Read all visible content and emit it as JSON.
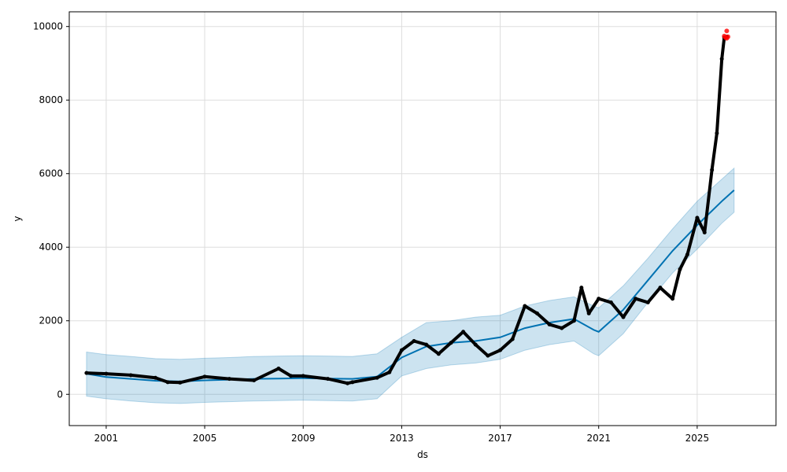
{
  "chart_data": {
    "type": "line",
    "title": "",
    "xlabel": "ds",
    "ylabel": "y",
    "xlim": [
      1999.5,
      2028.2
    ],
    "ylim": [
      -850,
      10400
    ],
    "grid": true,
    "x_ticks": [
      2001,
      2005,
      2009,
      2013,
      2017,
      2021,
      2025
    ],
    "x_tick_labels": [
      "2001",
      "2005",
      "2009",
      "2013",
      "2017",
      "2021",
      "2025"
    ],
    "y_ticks": [
      0,
      2000,
      4000,
      6000,
      8000,
      10000
    ],
    "y_tick_labels": [
      "0",
      "2000",
      "4000",
      "6000",
      "8000",
      "10000"
    ],
    "colors": {
      "forecast_line": "#0072b2",
      "uncertainty_band": "#0072b2",
      "observed_points": "#000000",
      "highlighted_points": "#ff0000",
      "grid": "#dddddd"
    },
    "forecast": {
      "x": [
        2000.2,
        2001,
        2002,
        2003,
        2004,
        2005,
        2006,
        2007,
        2008,
        2009,
        2010,
        2011,
        2012,
        2013,
        2014,
        2015,
        2016,
        2017,
        2018,
        2019,
        2020,
        2020.8,
        2021,
        2022,
        2023,
        2024,
        2025,
        2026,
        2026.5
      ],
      "yhat": [
        560,
        470,
        420,
        370,
        350,
        380,
        400,
        420,
        430,
        440,
        430,
        420,
        480,
        1000,
        1300,
        1400,
        1450,
        1550,
        1800,
        1950,
        2050,
        1750,
        1700,
        2300,
        3100,
        3900,
        4600,
        5250,
        5550
      ],
      "upper": [
        1150,
        1080,
        1030,
        970,
        950,
        980,
        1000,
        1030,
        1040,
        1050,
        1040,
        1030,
        1100,
        1550,
        1950,
        2000,
        2100,
        2150,
        2400,
        2550,
        2650,
        2400,
        2350,
        2950,
        3700,
        4500,
        5250,
        5850,
        6150
      ],
      "lower": [
        -50,
        -120,
        -180,
        -230,
        -250,
        -220,
        -200,
        -180,
        -170,
        -160,
        -170,
        -180,
        -120,
        500,
        700,
        800,
        850,
        950,
        1200,
        1350,
        1450,
        1100,
        1050,
        1650,
        2500,
        3300,
        3950,
        4650,
        4950
      ]
    },
    "observed": {
      "x": [
        2000.2,
        2001,
        2002,
        2003,
        2003.5,
        2004,
        2005,
        2006,
        2007,
        2008,
        2008.5,
        2009,
        2010,
        2010.8,
        2011,
        2012,
        2012.5,
        2013,
        2013.5,
        2014,
        2014.5,
        2015,
        2015.5,
        2016,
        2016.5,
        2017,
        2017.5,
        2018,
        2018.5,
        2019,
        2019.5,
        2020,
        2020.3,
        2020.6,
        2021,
        2021.5,
        2022,
        2022.5,
        2023,
        2023.5,
        2024,
        2024.3,
        2024.6,
        2025,
        2025.3,
        2025.6,
        2025.8,
        2026,
        2026.1,
        2026.2
      ],
      "y": [
        580,
        560,
        520,
        450,
        330,
        320,
        480,
        420,
        380,
        700,
        500,
        500,
        420,
        300,
        330,
        450,
        600,
        1200,
        1450,
        1350,
        1100,
        1400,
        1700,
        1350,
        1050,
        1200,
        1500,
        2400,
        2200,
        1900,
        1800,
        2000,
        2900,
        2200,
        2600,
        2500,
        2100,
        2600,
        2500,
        2900,
        2600,
        3400,
        3800,
        4800,
        4400,
        6100,
        7100,
        9120,
        9700,
        9720
      ]
    },
    "highlighted": {
      "x": [
        2026.1,
        2026.15,
        2026.2,
        2026.25,
        2026.2
      ],
      "y": [
        9740,
        9700,
        9680,
        9720,
        9880
      ]
    }
  }
}
